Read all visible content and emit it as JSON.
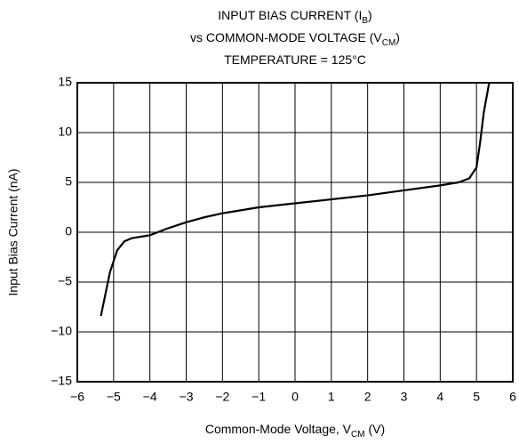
{
  "chart_data": {
    "type": "line",
    "title": [
      [
        {
          "text": "INPUT BIAS CURRENT (I"
        },
        {
          "text": "B",
          "sub": true
        },
        {
          "text": ")"
        }
      ],
      [
        {
          "text": "vs COMMON-MODE VOLTAGE (V"
        },
        {
          "text": "CM",
          "sub": true
        },
        {
          "text": ")"
        }
      ],
      [
        {
          "text": "TEMPERATURE = 125°C"
        }
      ]
    ],
    "x_label": [
      {
        "text": "Common-Mode Voltage, V"
      },
      {
        "text": "CM",
        "sub": true
      },
      {
        "text": " (V)"
      }
    ],
    "y_label": "Input Bias Current (nA)",
    "series": [
      {
        "name": "Input Bias Current",
        "color": "#000000",
        "x": [
          -5.35,
          -5.1,
          -4.9,
          -4.7,
          -4.5,
          -4.0,
          -3.5,
          -3.0,
          -2.5,
          -2.0,
          -1.5,
          -1.0,
          0,
          1,
          2,
          3,
          4,
          4.5,
          4.8,
          5.0,
          5.1,
          5.2,
          5.35
        ],
        "values": [
          -8.4,
          -4.0,
          -1.8,
          -0.9,
          -0.6,
          -0.3,
          0.4,
          1.0,
          1.5,
          1.9,
          2.2,
          2.5,
          2.9,
          3.3,
          3.7,
          4.2,
          4.7,
          5.0,
          5.4,
          6.5,
          9.0,
          12.0,
          15.0
        ]
      }
    ],
    "xlim": [
      -6,
      6
    ],
    "ylim": [
      -15,
      15
    ],
    "xticks": [
      {
        "value": -6,
        "label": "−6"
      },
      {
        "value": -5,
        "label": "−5"
      },
      {
        "value": -4,
        "label": "−4"
      },
      {
        "value": -3,
        "label": "−3"
      },
      {
        "value": -2,
        "label": "−2"
      },
      {
        "value": -1,
        "label": "−1"
      },
      0,
      1,
      2,
      3,
      4,
      5,
      6
    ],
    "yticks": [
      {
        "value": -15,
        "label": "−15"
      },
      {
        "value": -10,
        "label": "−10"
      },
      {
        "value": -5,
        "label": "−5"
      },
      0,
      5,
      10,
      15
    ],
    "grid": true
  }
}
